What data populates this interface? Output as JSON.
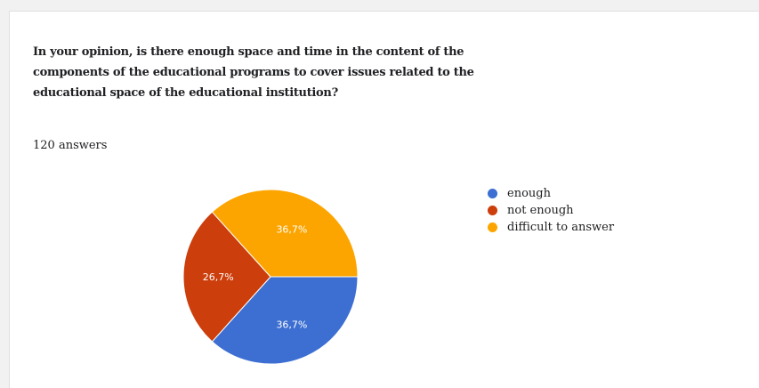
{
  "question": "In your opinion, is there enough space and time in the content of the components of the educational programs to cover issues related to the educational space of the educational institution?",
  "answer_count": "120 answers",
  "chart_data": {
    "type": "pie",
    "categories": [
      "enough",
      "not enough",
      "difficult to answer"
    ],
    "values": [
      36.7,
      26.7,
      36.7
    ],
    "labels": [
      "36,7%",
      "26,7%",
      "36,7%"
    ],
    "colors": [
      "#3c6fd1",
      "#cc3e0b",
      "#fca500"
    ],
    "start": "3 o'clock, clockwise",
    "legend_position": "right"
  }
}
